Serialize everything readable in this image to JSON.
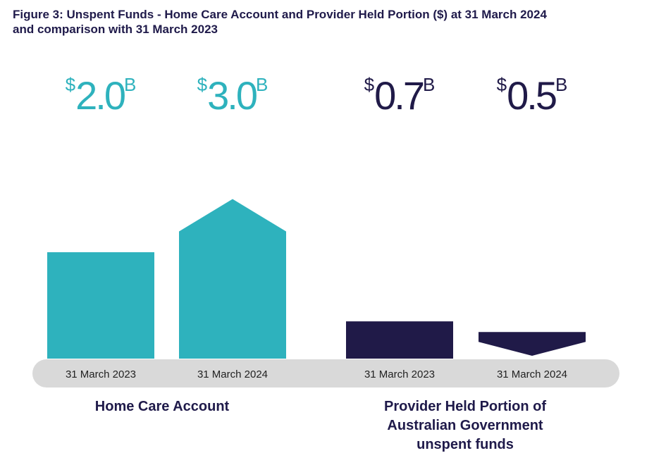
{
  "title": {
    "line1": "Figure 3: Unspent Funds - Home Care Account and Provider Held Portion ($) at 31 March 2024",
    "line2": "and comparison with 31 March 2023"
  },
  "colors": {
    "home_care": "#2eb2bd",
    "provider_held": "#201a48",
    "axis_band": "#d9d9d9",
    "title": "#1f1a4a"
  },
  "chart_data": {
    "type": "bar",
    "title": "Unspent Funds - Home Care Account and Provider Held Portion ($) at 31 March 2024 and comparison with 31 March 2023",
    "unit": "$ billion",
    "categories": [
      "31 March 2023",
      "31 March 2024",
      "31 March 2023",
      "31 March 2024"
    ],
    "groups": [
      {
        "name": "Home Care Account",
        "color": "#2eb2bd",
        "points": [
          {
            "category": "31 March 2023",
            "value": 2.0,
            "label": "2.0",
            "marker": "none"
          },
          {
            "category": "31 March 2024",
            "value": 3.0,
            "label": "3.0",
            "marker": "up"
          }
        ]
      },
      {
        "name": "Provider Held Portion of Australian Government unspent funds",
        "color": "#201a48",
        "points": [
          {
            "category": "31 March 2023",
            "value": 0.7,
            "label": "0.7",
            "marker": "none"
          },
          {
            "category": "31 March 2024",
            "value": 0.5,
            "label": "0.5",
            "marker": "down"
          }
        ]
      }
    ],
    "currency_symbol": "$",
    "suffix": "B",
    "xlabel": "",
    "ylabel": "",
    "grid": false,
    "legend": "none"
  },
  "group_labels": {
    "home_care": "Home Care Account",
    "provider_line1": "Provider Held Portion of",
    "provider_line2": "Australian Government",
    "provider_line3": "unspent funds"
  }
}
